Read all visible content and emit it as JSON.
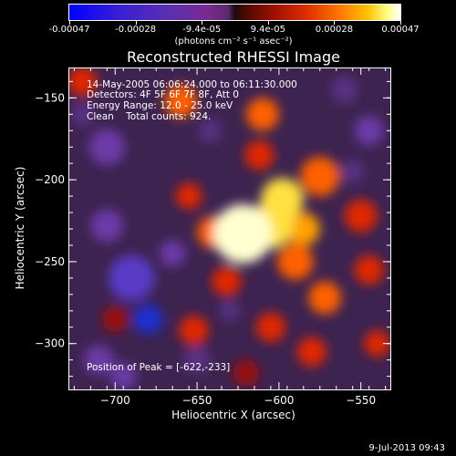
{
  "colorbar": {
    "ticks": [
      "-0.00047",
      "-0.00028",
      "-9.4e-05",
      "9.4e-05",
      "0.00028",
      "0.00047"
    ],
    "unit": "(photons cm⁻² s⁻¹ asec⁻²)"
  },
  "annotations": {
    "time": "14-May-2005 06:06:24.000 to 06:11:30.000",
    "detectors": "Detectors: 4F 5F 6F 7F 8F, Att 0",
    "energy": "Energy Range: 12.0 - 25.0 keV",
    "method": "Clean    Total counts: 924.",
    "peak": "Position of Peak = [-622,-233]"
  },
  "footer": "9-Jul-2013 09:43",
  "chart_data": {
    "type": "heatmap",
    "title": "Reconstructed RHESSI Image",
    "xlabel": "Heliocentric X (arcsec)",
    "ylabel": "Heliocentric Y (arcsec)",
    "xlim": [
      -728,
      -532
    ],
    "ylim": [
      -328,
      -132
    ],
    "xticks": [
      -700,
      -650,
      -600,
      -550
    ],
    "yticks": [
      -150,
      -200,
      -250,
      -300
    ],
    "colorbar_range": [
      -0.00047,
      0.00047
    ],
    "peak": {
      "x": -622,
      "y": -233
    },
    "blobs": [
      {
        "x": -622,
        "y": -233,
        "r": 18,
        "v": 1.0
      },
      {
        "x": -605,
        "y": -228,
        "r": 14,
        "v": 0.9
      },
      {
        "x": -598,
        "y": -212,
        "r": 13,
        "v": 0.85
      },
      {
        "x": -585,
        "y": -230,
        "r": 10,
        "v": 0.7
      },
      {
        "x": -575,
        "y": -198,
        "r": 12,
        "v": 0.65
      },
      {
        "x": -590,
        "y": -250,
        "r": 11,
        "v": 0.6
      },
      {
        "x": -640,
        "y": -232,
        "r": 10,
        "v": 0.55
      },
      {
        "x": -612,
        "y": -185,
        "r": 9,
        "v": 0.5
      },
      {
        "x": -660,
        "y": -152,
        "r": 10,
        "v": 0.55
      },
      {
        "x": -610,
        "y": -160,
        "r": 10,
        "v": 0.6
      },
      {
        "x": -720,
        "y": -140,
        "r": 9,
        "v": 0.45
      },
      {
        "x": -655,
        "y": -210,
        "r": 8,
        "v": 0.5
      },
      {
        "x": -550,
        "y": -222,
        "r": 10,
        "v": 0.5
      },
      {
        "x": -545,
        "y": -255,
        "r": 9,
        "v": 0.45
      },
      {
        "x": -572,
        "y": -272,
        "r": 10,
        "v": 0.55
      },
      {
        "x": -632,
        "y": -262,
        "r": 9,
        "v": 0.45
      },
      {
        "x": -652,
        "y": -292,
        "r": 9,
        "v": 0.45
      },
      {
        "x": -605,
        "y": -290,
        "r": 9,
        "v": 0.4
      },
      {
        "x": -580,
        "y": -305,
        "r": 9,
        "v": 0.45
      },
      {
        "x": -540,
        "y": -300,
        "r": 8,
        "v": 0.4
      },
      {
        "x": -620,
        "y": -318,
        "r": 8,
        "v": 0.35
      },
      {
        "x": -700,
        "y": -285,
        "r": 8,
        "v": 0.3
      },
      {
        "x": -705,
        "y": -228,
        "r": 10,
        "v": -0.6
      },
      {
        "x": -690,
        "y": -260,
        "r": 14,
        "v": -0.65
      },
      {
        "x": -680,
        "y": -285,
        "r": 9,
        "v": -0.85
      },
      {
        "x": -705,
        "y": -180,
        "r": 11,
        "v": -0.55
      },
      {
        "x": -710,
        "y": -310,
        "r": 9,
        "v": -0.5
      },
      {
        "x": -665,
        "y": -245,
        "r": 8,
        "v": -0.5
      },
      {
        "x": -650,
        "y": -310,
        "r": 8,
        "v": -0.45
      },
      {
        "x": -545,
        "y": -170,
        "r": 9,
        "v": -0.5
      },
      {
        "x": -560,
        "y": -145,
        "r": 8,
        "v": -0.45
      },
      {
        "x": -642,
        "y": -170,
        "r": 7,
        "v": -0.4
      },
      {
        "x": -720,
        "y": -160,
        "r": 7,
        "v": -0.4
      },
      {
        "x": -695,
        "y": -320,
        "r": 8,
        "v": -0.5
      },
      {
        "x": -630,
        "y": -280,
        "r": 6,
        "v": -0.35
      },
      {
        "x": -555,
        "y": -195,
        "r": 7,
        "v": -0.35
      }
    ]
  }
}
